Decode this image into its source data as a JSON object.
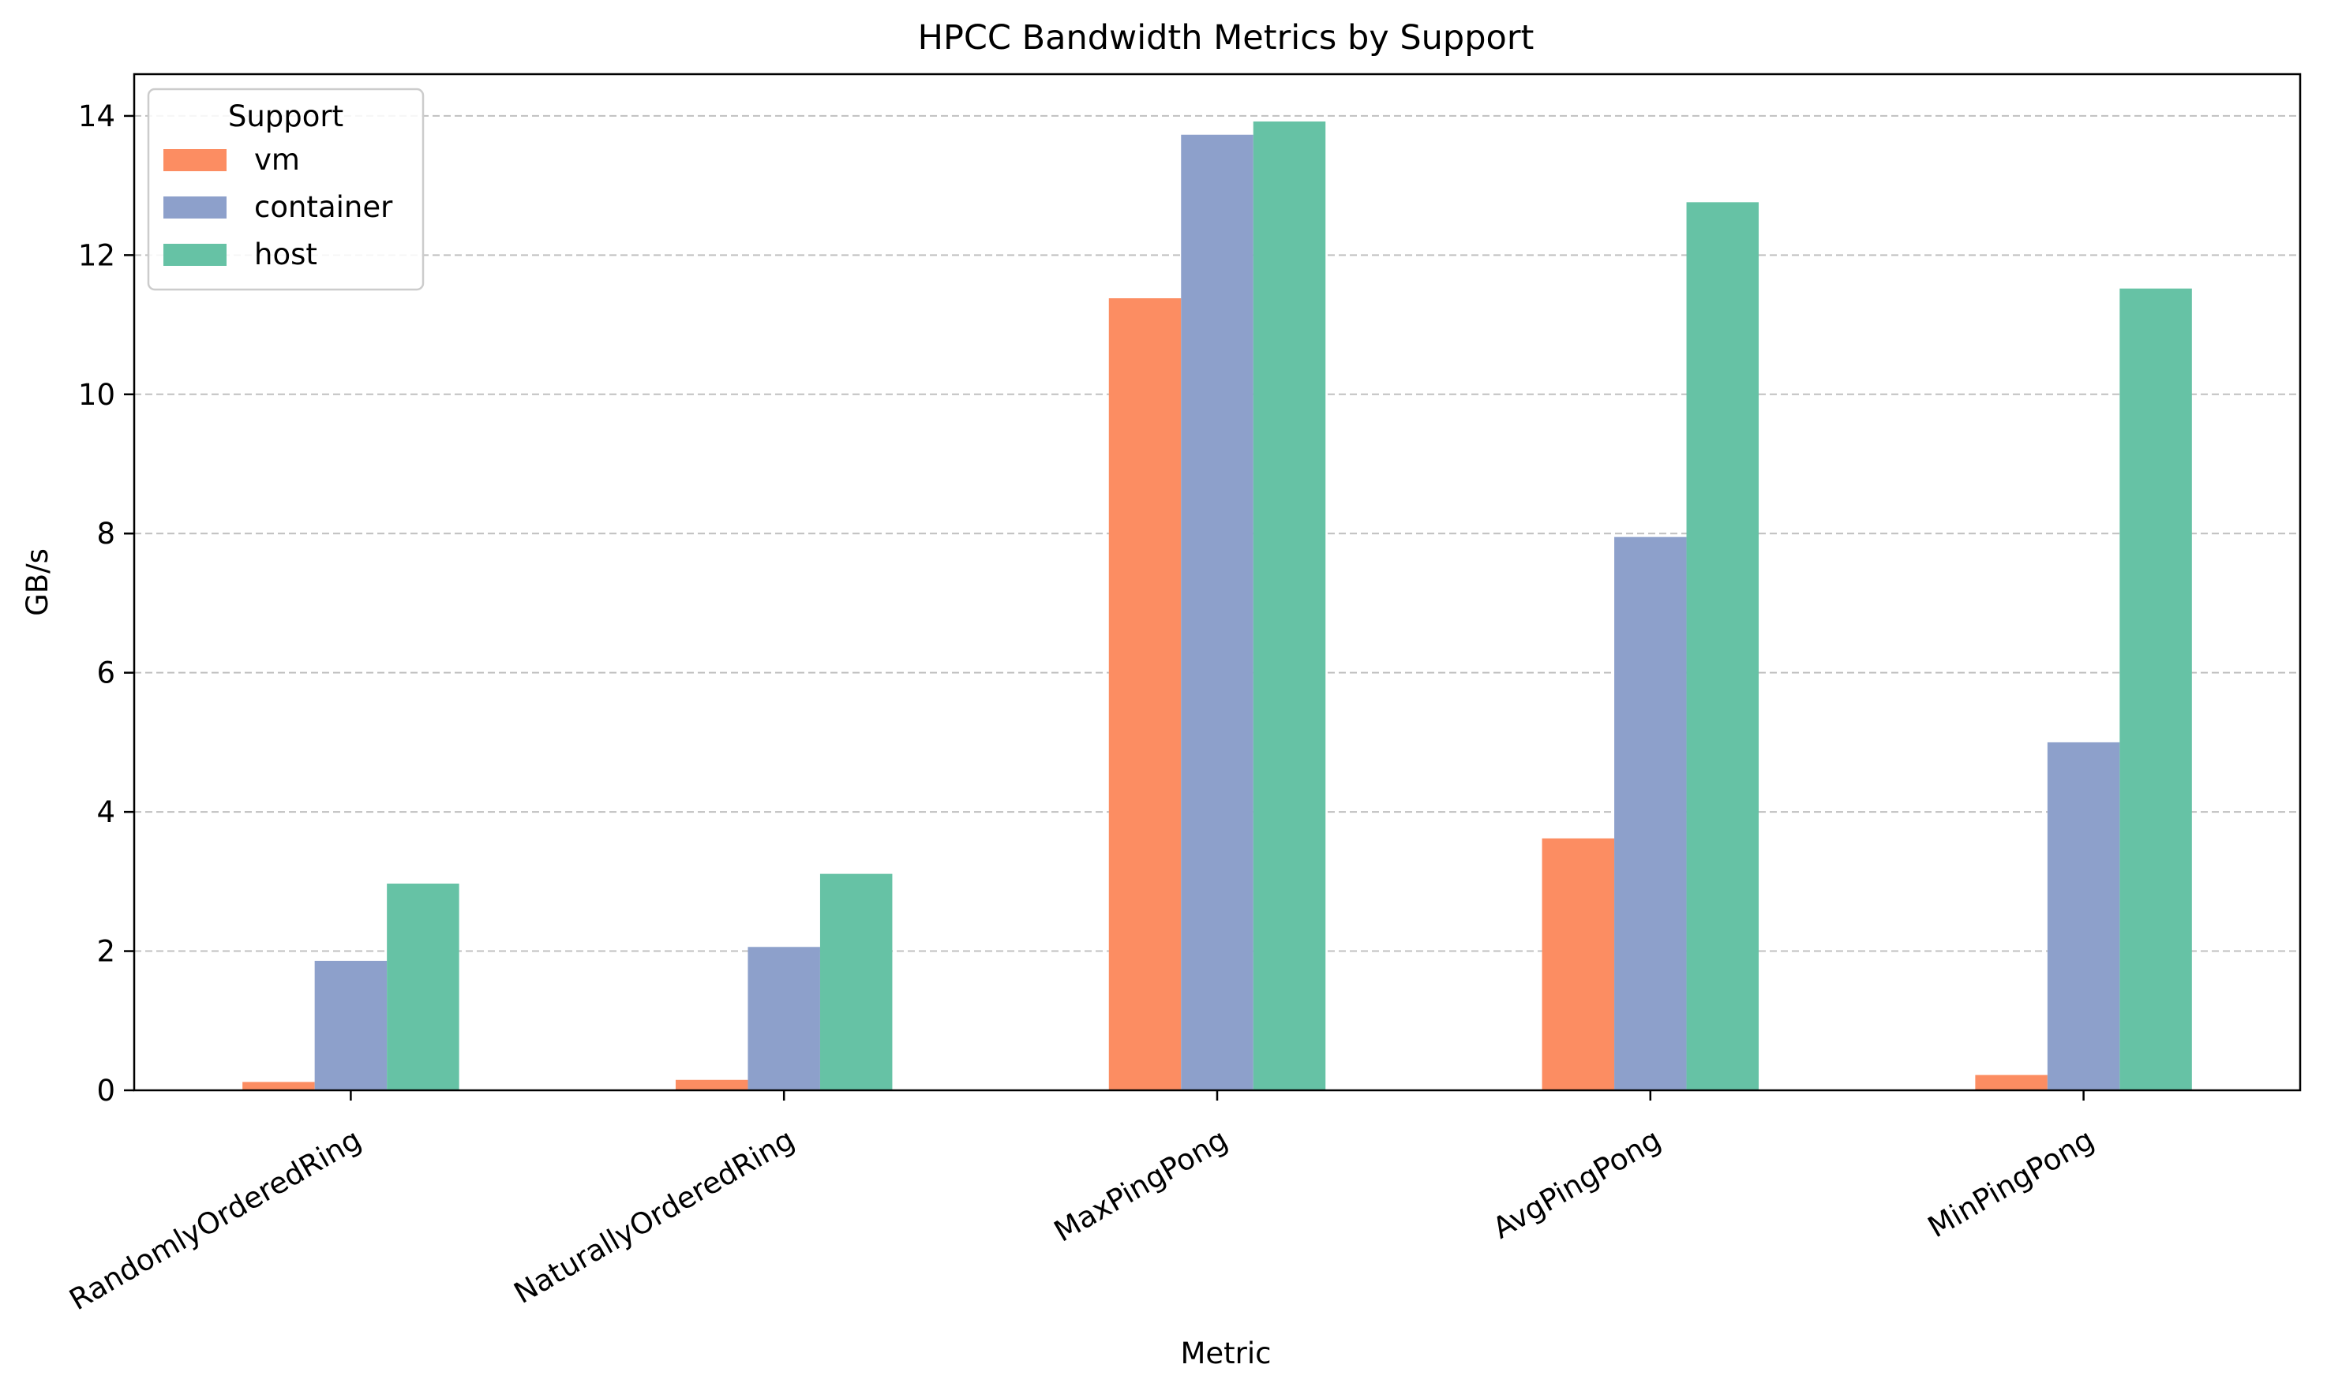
{
  "chart_data": {
    "type": "bar",
    "title": "HPCC Bandwidth Metrics by Support",
    "xlabel": "Metric",
    "ylabel": "GB/s",
    "categories": [
      "RandomlyOrderedRing",
      "NaturallyOrderedRing",
      "MaxPingPong",
      "AvgPingPong",
      "MinPingPong"
    ],
    "series": [
      {
        "name": "vm",
        "color": "#fc8d62",
        "values": [
          0.12,
          0.15,
          11.38,
          3.62,
          0.22
        ]
      },
      {
        "name": "container",
        "color": "#8da0cb",
        "values": [
          1.86,
          2.06,
          13.73,
          7.95,
          5.0
        ]
      },
      {
        "name": "host",
        "color": "#66c2a5",
        "values": [
          2.97,
          3.11,
          13.92,
          12.76,
          11.52
        ]
      }
    ],
    "ylim": [
      0,
      14.6
    ],
    "yticks": [
      0,
      2,
      4,
      6,
      8,
      10,
      12,
      14
    ],
    "grid": {
      "axis": "y",
      "style": "dashed",
      "color": "#c0c0c0"
    },
    "legend": {
      "title": "Support",
      "placement": "top-left"
    }
  }
}
